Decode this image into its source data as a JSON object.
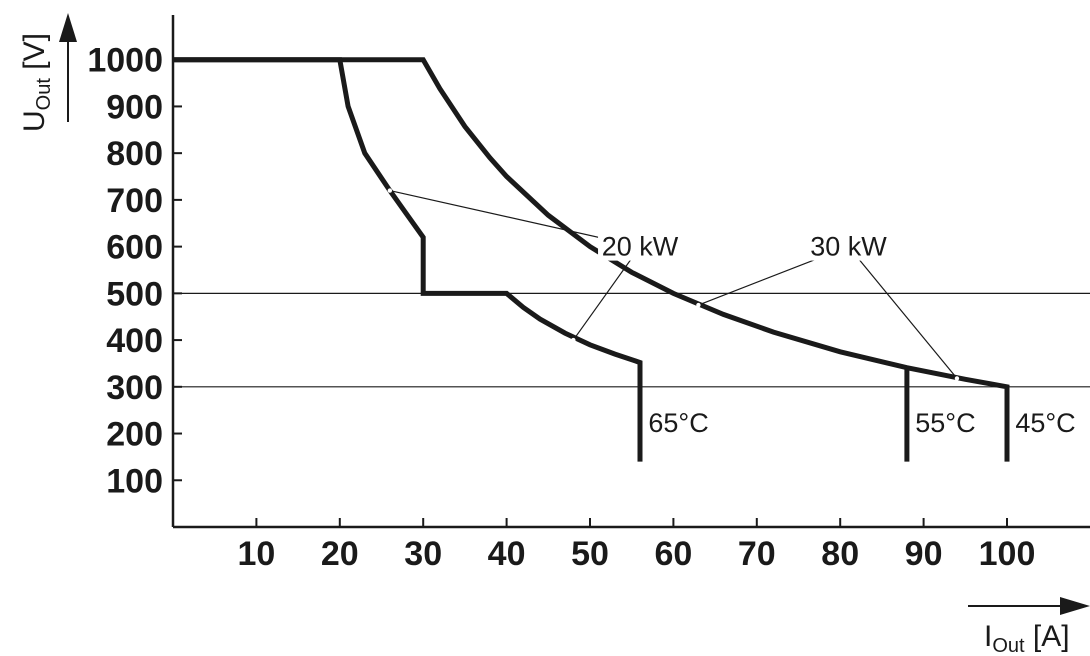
{
  "chart_data": {
    "type": "line",
    "title": "",
    "xlabel": {
      "main": "I",
      "sub": "Out",
      "unit": " [A]"
    },
    "ylabel": {
      "main": "U",
      "sub": "Out",
      "unit": " [V]"
    },
    "xlim": [
      0,
      110
    ],
    "ylim": [
      0,
      1100
    ],
    "x_ticks": [
      10,
      20,
      30,
      40,
      50,
      60,
      70,
      80,
      90,
      100
    ],
    "y_ticks": [
      100,
      200,
      300,
      400,
      500,
      600,
      700,
      800,
      900,
      1000
    ],
    "grid": false,
    "reference_lines": [
      {
        "y": 500,
        "x_range": [
          0,
          110
        ]
      },
      {
        "y": 300,
        "x_range": [
          0,
          110
        ]
      }
    ],
    "series": [
      {
        "id": "curve_20kw",
        "points": [
          [
            0,
            1000
          ],
          [
            20,
            1000
          ],
          [
            21,
            900
          ],
          [
            23,
            800
          ],
          [
            26,
            720
          ],
          [
            28,
            670
          ],
          [
            30,
            620
          ],
          [
            30,
            500
          ],
          [
            40,
            500
          ],
          [
            42,
            470
          ],
          [
            44,
            445
          ],
          [
            47,
            415
          ],
          [
            50,
            390
          ],
          [
            53,
            370
          ],
          [
            56,
            352
          ],
          [
            56,
            140
          ]
        ]
      },
      {
        "id": "curve_30kw",
        "points": [
          [
            0,
            1000
          ],
          [
            30,
            1000
          ],
          [
            32,
            938
          ],
          [
            35,
            857
          ],
          [
            38,
            790
          ],
          [
            40,
            750
          ],
          [
            45,
            667
          ],
          [
            50,
            600
          ],
          [
            55,
            545
          ],
          [
            60,
            500
          ],
          [
            66,
            455
          ],
          [
            72,
            417
          ],
          [
            80,
            375
          ],
          [
            88,
            341
          ],
          [
            95,
            316
          ],
          [
            100,
            300
          ],
          [
            100,
            140
          ]
        ]
      },
      {
        "id": "derate_55",
        "points": [
          [
            88,
            341
          ],
          [
            88,
            140
          ]
        ]
      }
    ],
    "annotations": [
      {
        "text": "20 kW",
        "x": 56,
        "y": 600,
        "leaders": [
          [
            26,
            720
          ],
          [
            48,
            400
          ]
        ]
      },
      {
        "text": "30 kW",
        "x": 81,
        "y": 600,
        "leaders": [
          [
            63,
            475
          ],
          [
            94,
            318
          ]
        ]
      },
      {
        "text": "65°C",
        "x": 57,
        "y": 225
      },
      {
        "text": "55°C",
        "x": 89,
        "y": 225
      },
      {
        "text": "45°C",
        "x": 101,
        "y": 225
      }
    ]
  }
}
